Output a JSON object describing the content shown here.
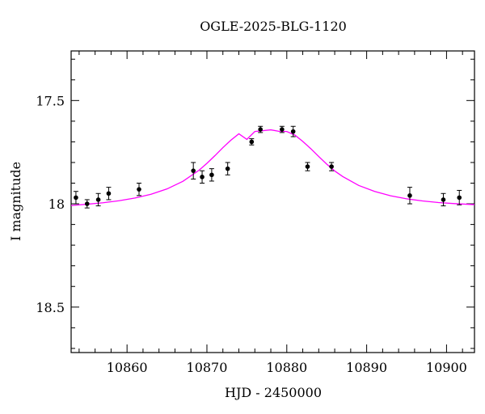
{
  "chart_data": {
    "type": "scatter",
    "title": "OGLE-2025-BLG-1120",
    "xlabel": "HJD - 2450000",
    "ylabel": "I magnitude",
    "xlim": [
      10853,
      10903.5
    ],
    "ylim": [
      18.72,
      17.26
    ],
    "y_inverted": true,
    "x_ticks": [
      10860,
      10870,
      10880,
      10890,
      10900
    ],
    "x_tick_labels": [
      "10860",
      "10870",
      "10880",
      "10890",
      "10900"
    ],
    "y_ticks": [
      17.5,
      18,
      18.5
    ],
    "y_tick_labels": [
      "17.5",
      "18",
      "18.5"
    ],
    "grid": false,
    "legend": "none",
    "series": [
      {
        "kind": "points_with_errorbars",
        "color": "#000000",
        "x": [
          10853.6,
          10855.0,
          10856.4,
          10857.7,
          10861.5,
          10868.3,
          10869.4,
          10870.6,
          10872.6,
          10875.6,
          10876.7,
          10879.4,
          10880.8,
          10882.6,
          10885.6,
          10895.4,
          10899.6,
          10901.6
        ],
        "y": [
          17.97,
          18.0,
          17.98,
          17.95,
          17.93,
          17.84,
          17.87,
          17.86,
          17.83,
          17.7,
          17.64,
          17.64,
          17.65,
          17.82,
          17.82,
          17.96,
          17.98,
          17.97
        ],
        "yerr": [
          0.03,
          0.02,
          0.03,
          0.03,
          0.03,
          0.04,
          0.03,
          0.03,
          0.03,
          0.015,
          0.015,
          0.015,
          0.025,
          0.02,
          0.02,
          0.04,
          0.03,
          0.035
        ]
      },
      {
        "kind": "model_curve",
        "color": "#ff00ff",
        "model": "point-lens microlensing light curve",
        "x": [
          10853,
          10855,
          10857,
          10859,
          10861,
          10863,
          10865,
          10867,
          10869,
          10870,
          10871,
          10872,
          10873,
          10874,
          10875,
          10876,
          10877,
          10878,
          10879,
          10880,
          10881,
          10882,
          10883,
          10884,
          10885,
          10886,
          10887,
          10889,
          10891,
          10893,
          10895,
          10897,
          10899,
          10901,
          10903.5
        ],
        "y": [
          18.008,
          18.002,
          17.995,
          17.985,
          17.972,
          17.954,
          17.928,
          17.891,
          17.838,
          17.804,
          17.767,
          17.728,
          17.692,
          17.661,
          17.688,
          17.65,
          17.646,
          17.642,
          17.649,
          17.65,
          17.667,
          17.698,
          17.733,
          17.771,
          17.808,
          17.841,
          17.868,
          17.911,
          17.94,
          17.961,
          17.976,
          17.986,
          17.994,
          17.999,
          18.004
        ]
      }
    ]
  }
}
